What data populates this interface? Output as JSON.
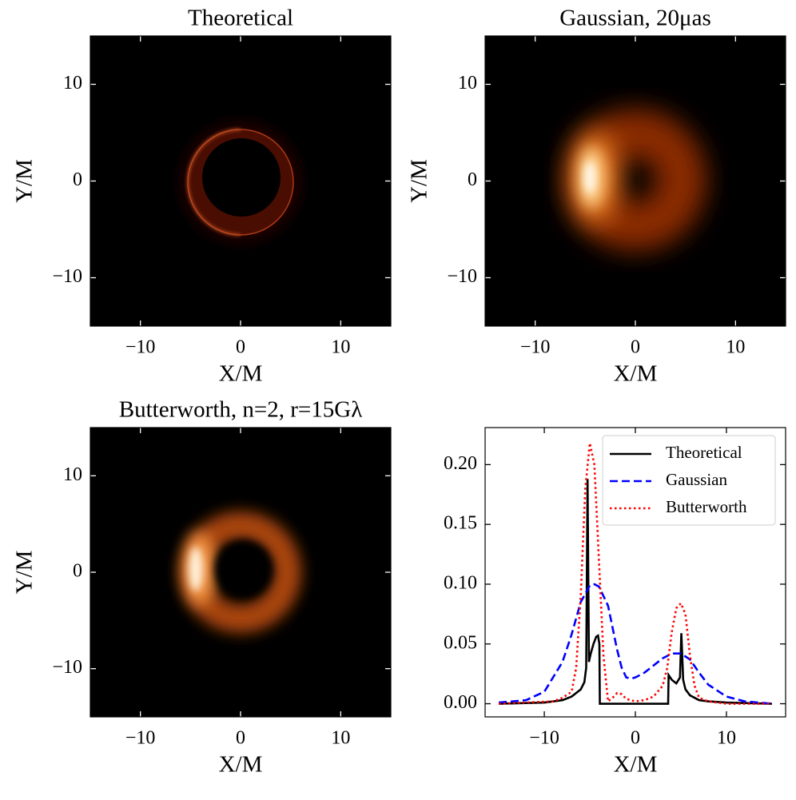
{
  "chart_data": [
    {
      "type": "image",
      "title": "Theoretical",
      "xlabel": "X/M",
      "ylabel": "Y/M",
      "xlim": [
        -15,
        15
      ],
      "ylim": [
        -15,
        15
      ],
      "xticks": [
        {
          "value": -10,
          "label": "−10"
        },
        0,
        10
      ],
      "yticks": [
        {
          "value": -10,
          "label": "−10"
        },
        0,
        10
      ]
    },
    {
      "type": "image",
      "title": "Gaussian, 20μas",
      "xlabel": "X/M",
      "ylabel": "Y/M",
      "xlim": [
        -15,
        15
      ],
      "ylim": [
        -15,
        15
      ],
      "xticks": [
        {
          "value": -10,
          "label": "−10"
        },
        0,
        10
      ],
      "yticks": [
        {
          "value": -10,
          "label": "−10"
        },
        0,
        10
      ]
    },
    {
      "type": "image",
      "title": "Butterworth, n=2, r=15Gλ",
      "xlabel": "X/M",
      "ylabel": "Y/M",
      "xlim": [
        -15,
        15
      ],
      "ylim": [
        -15,
        15
      ],
      "xticks": [
        {
          "value": -10,
          "label": "−10"
        },
        0,
        10
      ],
      "yticks": [
        {
          "value": -10,
          "label": "−10"
        },
        0,
        10
      ]
    },
    {
      "type": "line",
      "xlabel": "X/M",
      "legend": "upper right",
      "xlim": [
        -16.5,
        16.5
      ],
      "ylim": [
        -0.011,
        0.231
      ],
      "xticks": [
        {
          "value": -10,
          "label": "−10"
        },
        0,
        10
      ],
      "yticks": [
        {
          "value": 0,
          "label": "0.00"
        },
        {
          "value": 0.05,
          "label": "0.05"
        },
        {
          "value": 0.1,
          "label": "0.10"
        },
        {
          "value": 0.15,
          "label": "0.15"
        },
        {
          "value": 0.2,
          "label": "0.20"
        }
      ],
      "series": [
        {
          "name": "Theoretical",
          "color": "#000000",
          "style": "solid",
          "x": [
            -15,
            -10,
            -8,
            -7,
            -6,
            -5.6,
            -5.4,
            -5.25,
            -5.1,
            -4.9,
            -4.6,
            -4.3,
            -4.1,
            -3.95,
            -3.9,
            0,
            3.6,
            3.65,
            4.0,
            4.5,
            4.9,
            5.05,
            5.25,
            5.5,
            6,
            7,
            8,
            10,
            15
          ],
          "values": [
            0,
            0.001,
            0.003,
            0.006,
            0.012,
            0.018,
            0.03,
            0.188,
            0.035,
            0.042,
            0.05,
            0.056,
            0.057,
            0.05,
            0,
            0,
            0,
            0.024,
            0.02,
            0.017,
            0.022,
            0.059,
            0.02,
            0.012,
            0.007,
            0.003,
            0.002,
            0.001,
            0
          ]
        },
        {
          "name": "Gaussian",
          "color": "#0000ff",
          "style": "dashed",
          "x": [
            -15,
            -12,
            -10,
            -8,
            -7,
            -6,
            -5,
            -4.5,
            -4,
            -3,
            -2,
            -1.5,
            -1,
            -0.5,
            0,
            1,
            2,
            3,
            4,
            5,
            6,
            7,
            8,
            10,
            12,
            15
          ],
          "values": [
            0.001,
            0.003,
            0.01,
            0.035,
            0.058,
            0.085,
            0.099,
            0.1,
            0.098,
            0.082,
            0.045,
            0.03,
            0.022,
            0.021,
            0.022,
            0.026,
            0.032,
            0.038,
            0.042,
            0.042,
            0.037,
            0.026,
            0.016,
            0.006,
            0.002,
            0
          ]
        },
        {
          "name": "Butterworth",
          "color": "#ff0000",
          "style": "dotted",
          "x": [
            -15,
            -9,
            -8,
            -7,
            -6.5,
            -6,
            -5.5,
            -5,
            -4.5,
            -4,
            -3.5,
            -3,
            -2.5,
            -2,
            -1.5,
            -1,
            0,
            1,
            2,
            3,
            3.5,
            4,
            4.5,
            5,
            5.5,
            6,
            6.5,
            7,
            8,
            10,
            15
          ],
          "values": [
            0,
            0.002,
            0.005,
            0.01,
            0.03,
            0.09,
            0.18,
            0.218,
            0.2,
            0.12,
            0.04,
            0.002,
            0.005,
            0.009,
            0.008,
            0.004,
            0.002,
            0.003,
            0.006,
            0.015,
            0.03,
            0.06,
            0.08,
            0.084,
            0.075,
            0.04,
            0.015,
            0.005,
            0.002,
            0,
            0
          ]
        }
      ]
    }
  ]
}
